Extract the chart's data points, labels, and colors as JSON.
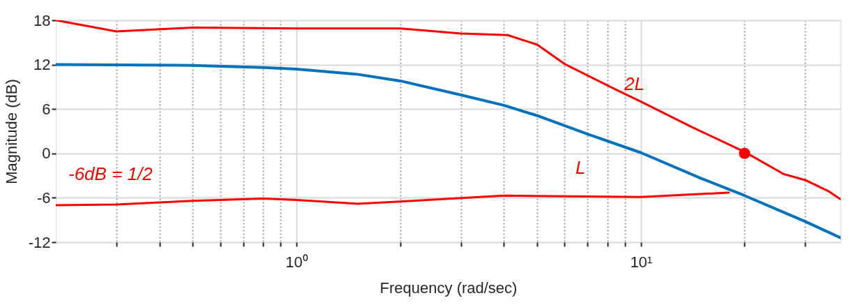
{
  "chart_data": {
    "type": "line",
    "xlabel": "Frequency (rad/sec)",
    "ylabel": "Magnitude (dB)",
    "log": "x",
    "grid": true,
    "line_style": "solid",
    "xlim": [
      0.2,
      38
    ],
    "ylim": [
      -12,
      18
    ],
    "xticks": [
      {
        "value": 0.3,
        "label": null
      },
      {
        "value": 0.4,
        "label": null
      },
      {
        "value": 0.5,
        "label": null
      },
      {
        "value": 0.6,
        "label": null
      },
      {
        "value": 0.7,
        "label": null
      },
      {
        "value": 0.8,
        "label": null
      },
      {
        "value": 0.9,
        "label": null
      },
      {
        "value": 1,
        "label": "10⁰"
      },
      {
        "value": 2,
        "label": null
      },
      {
        "value": 3,
        "label": null
      },
      {
        "value": 4,
        "label": null
      },
      {
        "value": 5,
        "label": null
      },
      {
        "value": 6,
        "label": null
      },
      {
        "value": 7,
        "label": null
      },
      {
        "value": 8,
        "label": null
      },
      {
        "value": 9,
        "label": null
      },
      {
        "value": 10,
        "label": "10¹"
      },
      {
        "value": 20,
        "label": null
      },
      {
        "value": 30,
        "label": null
      }
    ],
    "yticks": [
      -12,
      -6,
      0,
      6,
      12,
      18
    ],
    "series": [
      {
        "color": "#0072bd",
        "x": [
          0.2,
          0.5,
          0.8,
          1,
          1.5,
          2,
          3,
          4,
          5,
          7,
          10,
          15,
          20,
          30,
          38
        ],
        "values": [
          12,
          11.9,
          11.6,
          11.4,
          10.7,
          9.8,
          7.9,
          6.5,
          5.1,
          2.6,
          0.1,
          -3.4,
          -5.7,
          -9.2,
          -11.4
        ]
      },
      {
        "color": "#ff0000",
        "x": [
          0.2,
          0.3,
          0.5,
          1,
          2,
          3,
          4.1,
          5,
          6,
          8.4,
          10,
          14,
          20,
          26,
          30,
          35,
          38
        ],
        "values": [
          18,
          16.5,
          17,
          16.9,
          16.9,
          16.2,
          16,
          14.7,
          12.1,
          8.7,
          7,
          3.6,
          0.2,
          -2.8,
          -3.6,
          -5.1,
          -6.2
        ]
      },
      {
        "color": "#ff0000",
        "x": [
          0.2,
          0.3,
          0.5,
          0.8,
          1,
          1.5,
          2,
          4,
          10,
          18
        ],
        "values": [
          -7,
          -6.9,
          -6.4,
          -6.1,
          -6.3,
          -6.8,
          -6.5,
          -5.7,
          -5.9,
          -5.3
        ]
      },
      {
        "type": "scatter",
        "color": "#ff0000",
        "x": [
          20
        ],
        "values": [
          0
        ]
      }
    ],
    "annotations": [
      "-6dB = 1/2",
      "2L",
      "L"
    ]
  }
}
